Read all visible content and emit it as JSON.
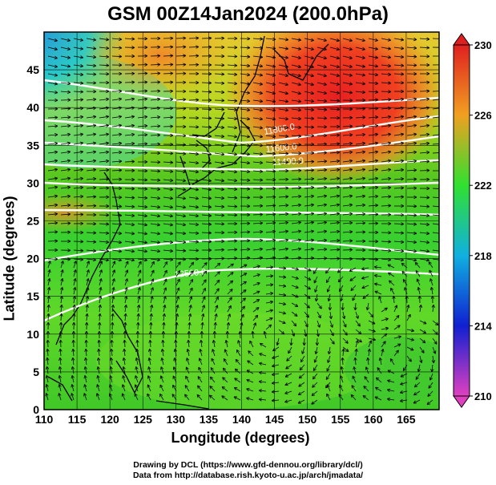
{
  "title": "GSM 00Z14Jan2024 (200.0hPa)",
  "xlabel": "Longitude (degrees)",
  "ylabel": "Latitude  (degrees)",
  "x_ticks": [
    "110",
    "115",
    "120",
    "125",
    "130",
    "135",
    "140",
    "145",
    "150",
    "155",
    "160",
    "165"
  ],
  "y_ticks": [
    "0",
    "5",
    "10",
    "15",
    "20",
    "25",
    "30",
    "35",
    "40",
    "45"
  ],
  "colorbar_ticks": [
    "210",
    "214",
    "218",
    "222",
    "226",
    "230"
  ],
  "contour_labels": [
    "11800.0",
    "11600.0",
    "11400.0",
    "12500.0"
  ],
  "credits": {
    "line1": "Drawing by DCL (https://www.gfd-dennou.org/library/dcl/)",
    "line2": "Data from http://database.rish.kyoto-u.ac.jp/arch/jmadata/"
  },
  "colors": {
    "colorbar_stops": [
      "#e040c0",
      "#1020d0",
      "#10b0e0",
      "#30e030",
      "#f0a020",
      "#e02020"
    ]
  }
}
